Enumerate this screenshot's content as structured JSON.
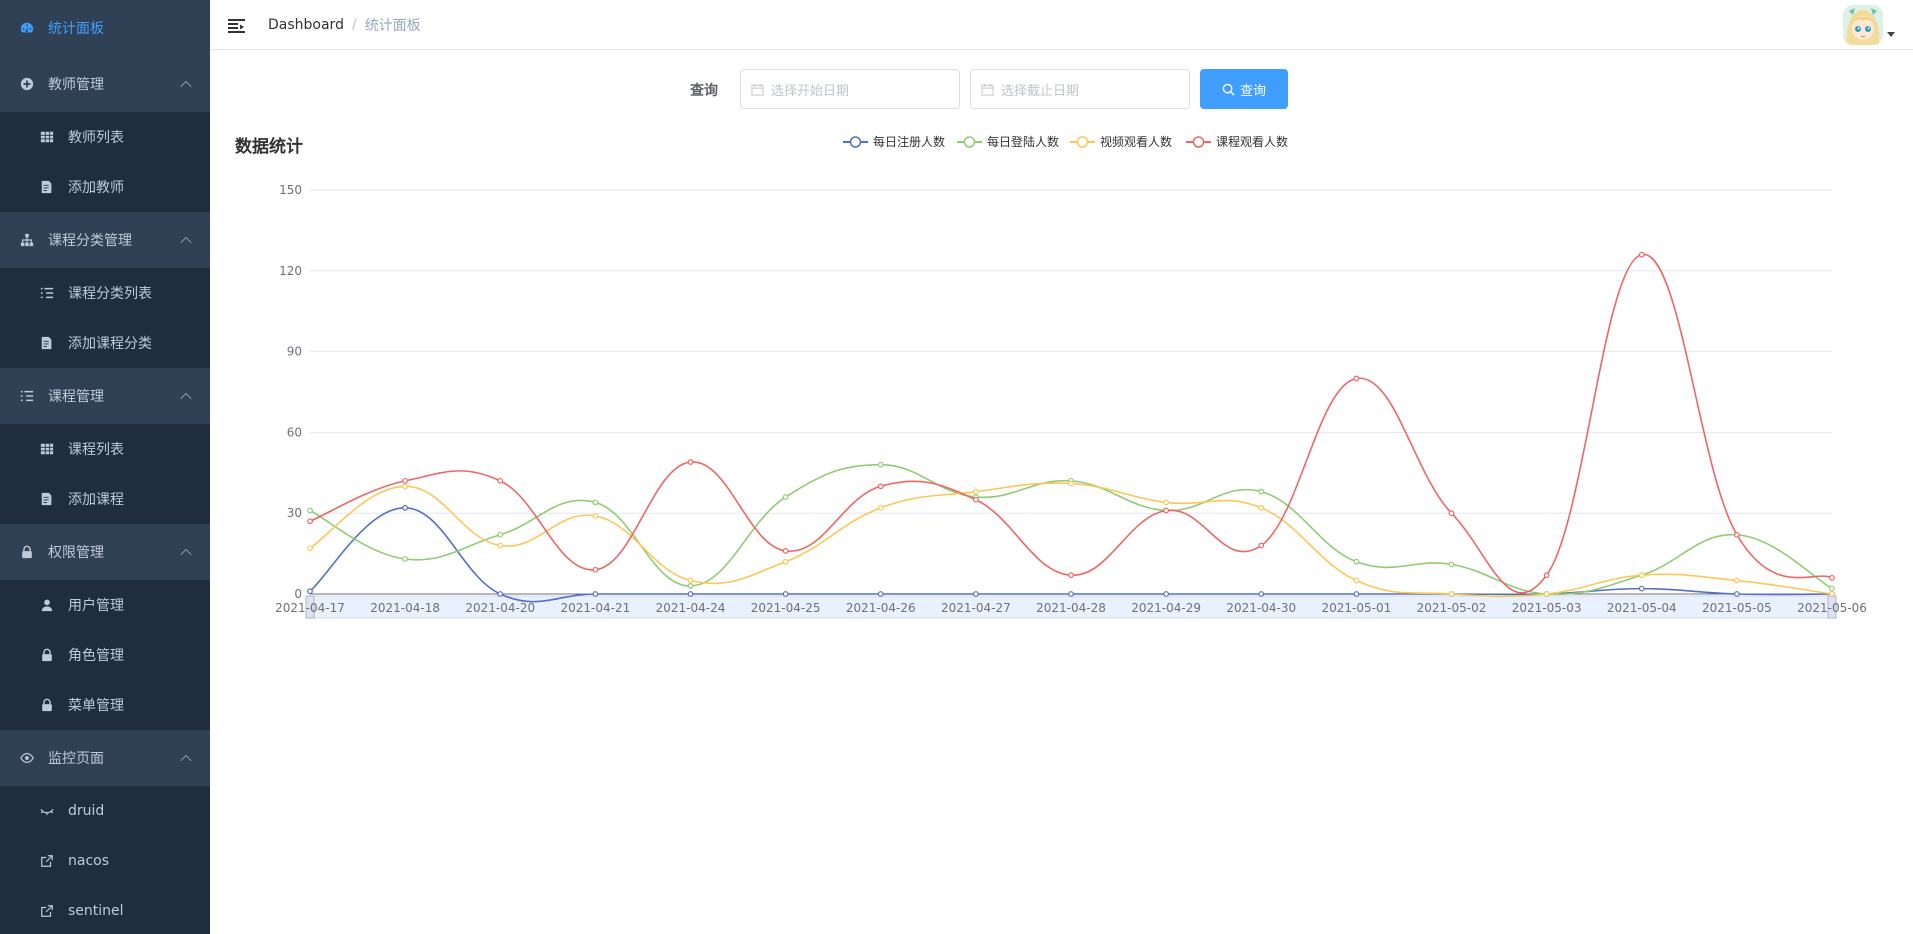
{
  "sidebar": {
    "dashboard": "统计面板",
    "groups": [
      {
        "title": "教师管理",
        "items": [
          "教师列表",
          "添加教师"
        ]
      },
      {
        "title": "课程分类管理",
        "items": [
          "课程分类列表",
          "添加课程分类"
        ]
      },
      {
        "title": "课程管理",
        "items": [
          "课程列表",
          "添加课程"
        ]
      },
      {
        "title": "权限管理",
        "items": [
          "用户管理",
          "角色管理",
          "菜单管理"
        ]
      },
      {
        "title": "监控页面",
        "items": [
          "druid",
          "nacos",
          "sentinel"
        ]
      }
    ]
  },
  "navbar": {
    "breadcrumb_home": "Dashboard",
    "breadcrumb_sep": "/",
    "breadcrumb_current": "统计面板"
  },
  "query": {
    "label": "查询",
    "start_placeholder": "选择开始日期",
    "end_placeholder": "选择截止日期",
    "button": "查询"
  },
  "chart_title": "数据统计",
  "colors": {
    "sidebar_bg": "#304156",
    "submenu_bg": "#1f2d3d",
    "active": "#409EFF",
    "menu_text": "#bfcbd9"
  },
  "chart_data": {
    "type": "line",
    "smooth": true,
    "categories": [
      "2021-04-17",
      "2021-04-18",
      "2021-04-20",
      "2021-04-21",
      "2021-04-24",
      "2021-04-25",
      "2021-04-26",
      "2021-04-27",
      "2021-04-28",
      "2021-04-29",
      "2021-04-30",
      "2021-05-01",
      "2021-05-02",
      "2021-05-03",
      "2021-05-04",
      "2021-05-05",
      "2021-05-06"
    ],
    "ylim": [
      0,
      150
    ],
    "yticks": [
      0,
      30,
      60,
      90,
      120,
      150
    ],
    "grid": "horizontal",
    "legend": "top-center",
    "data_zoom_slider": true,
    "series": [
      {
        "name": "每日注册人数",
        "color": "#5470c6",
        "values": [
          1,
          32,
          0,
          0,
          0,
          0,
          0,
          0,
          0,
          0,
          0,
          0,
          0,
          0,
          2,
          0,
          0
        ]
      },
      {
        "name": "每日登陆人数",
        "color": "#91cc75",
        "values": [
          31,
          13,
          22,
          34,
          3,
          36,
          48,
          36,
          42,
          31,
          38,
          12,
          11,
          0,
          7,
          22,
          2
        ]
      },
      {
        "name": "视频观看人数",
        "color": "#fac858",
        "values": [
          17,
          40,
          18,
          29,
          5,
          12,
          32,
          38,
          41,
          34,
          32,
          5,
          0,
          0,
          7,
          5,
          0
        ]
      },
      {
        "name": "课程观看人数",
        "color": "#ee6666",
        "values": [
          27,
          42,
          42,
          9,
          49,
          16,
          40,
          35,
          7,
          31,
          18,
          80,
          30,
          7,
          126,
          22,
          6
        ]
      }
    ]
  }
}
